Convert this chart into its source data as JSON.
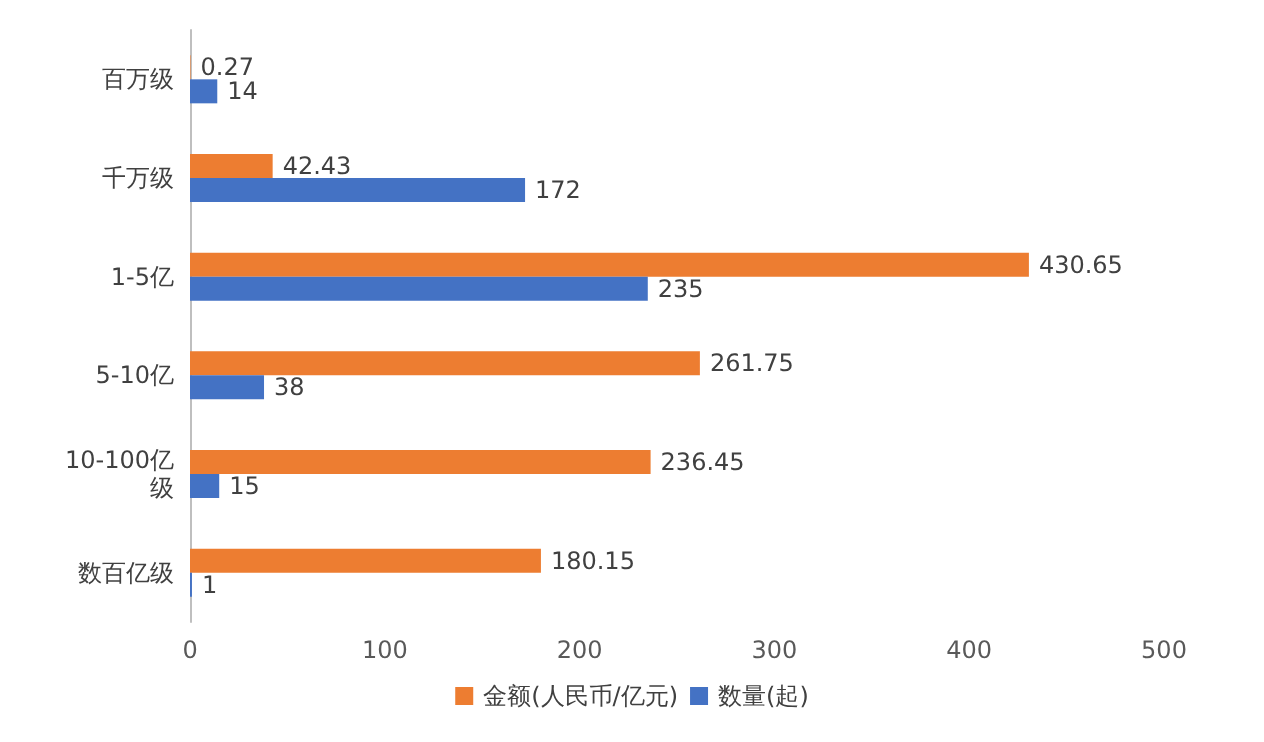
{
  "chart_data": {
    "type": "bar",
    "orientation": "horizontal",
    "categories": [
      "百万级",
      "千万级",
      "1-5亿",
      "5-10亿",
      "10-100亿级",
      "数百亿级"
    ],
    "series": [
      {
        "name": "金额(人民币/亿元)",
        "color": "#ed7d31",
        "values": [
          0.27,
          42.43,
          430.65,
          261.75,
          236.45,
          180.15
        ]
      },
      {
        "name": "数量(起)",
        "color": "#4472c4",
        "values": [
          14,
          172,
          235,
          38,
          15,
          1
        ]
      }
    ],
    "xlim": [
      0,
      500
    ],
    "xticks": [
      0,
      100,
      200,
      300,
      400,
      500
    ],
    "grid": false,
    "legend": "bottom",
    "data_labels": true
  }
}
